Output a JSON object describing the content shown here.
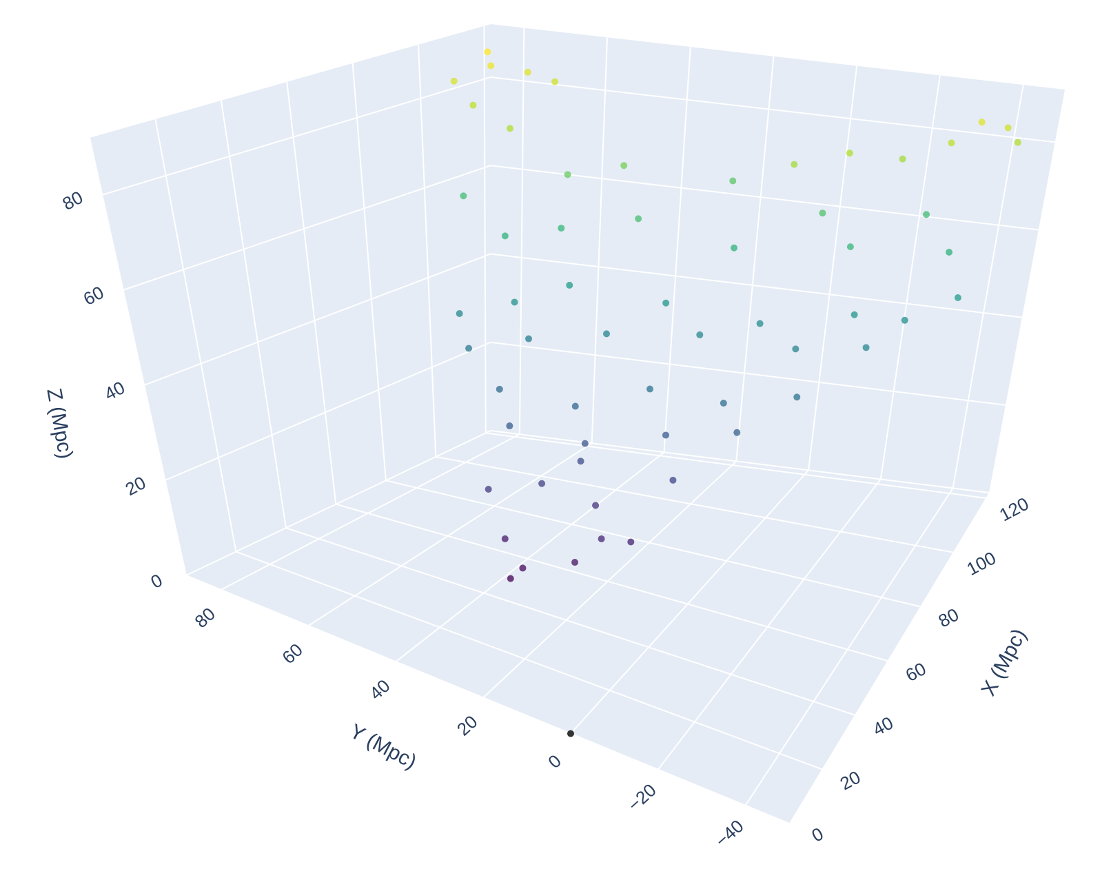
{
  "chart_data": {
    "type": "scatter3d",
    "x_title": "X (Mpc)",
    "y_title": "Y (Mpc)",
    "z_title": "Z (Mpc)",
    "xlim": [
      0,
      122
    ],
    "ylim": [
      -50,
      88
    ],
    "zlim": [
      0,
      92
    ],
    "xticks": [
      0,
      20,
      40,
      60,
      80,
      100,
      120
    ],
    "yticks": [
      {
        "value": -40,
        "label": "−40"
      },
      {
        "value": -20,
        "label": "−20"
      },
      0,
      20,
      40,
      60,
      80
    ],
    "zticks": [
      0,
      20,
      40,
      60,
      80
    ],
    "grid": true,
    "series": [
      {
        "colorscale": "Viridis",
        "x": [
          105,
          110,
          100,
          112,
          95,
          108,
          90,
          115,
          118,
          112,
          120,
          110,
          105,
          100,
          95,
          100,
          90,
          110,
          105,
          115,
          85,
          80,
          95,
          100,
          88,
          108,
          80,
          75,
          85,
          90,
          95,
          70,
          78,
          88,
          100,
          72,
          82,
          92,
          65,
          105,
          60,
          65,
          70,
          75,
          80,
          55,
          60,
          68,
          72,
          45,
          50,
          55,
          48,
          42,
          40,
          52,
          58,
          62,
          38,
          45
        ],
        "y": [
          75,
          70,
          80,
          65,
          72,
          78,
          60,
          -35,
          -40,
          -30,
          -42,
          -20,
          -10,
          0,
          50,
          40,
          30,
          20,
          -5,
          -25,
          45,
          55,
          10,
          -15,
          70,
          -35,
          40,
          50,
          20,
          0,
          -20,
          60,
          30,
          -10,
          -30,
          45,
          10,
          -25,
          55,
          -40,
          45,
          30,
          15,
          0,
          -15,
          40,
          25,
          10,
          -5,
          40,
          30,
          20,
          15,
          35,
          30,
          10,
          25,
          5,
          32,
          20
        ],
        "z": [
          88,
          86,
          85,
          84,
          82,
          90,
          80,
          86,
          84,
          82,
          80,
          78,
          80,
          78,
          70,
          72,
          65,
          68,
          66,
          64,
          62,
          60,
          60,
          62,
          64,
          60,
          52,
          48,
          50,
          47,
          50,
          45,
          44,
          44,
          48,
          42,
          46,
          45,
          40,
          52,
          35,
          33,
          38,
          36,
          38,
          30,
          28,
          30,
          32,
          20,
          22,
          18,
          15,
          12,
          8,
          14,
          25,
          24,
          6,
          10
        ]
      },
      {
        "color": "#333333",
        "x": [
          0
        ],
        "y": [
          0
        ],
        "z": [
          0
        ]
      }
    ]
  }
}
